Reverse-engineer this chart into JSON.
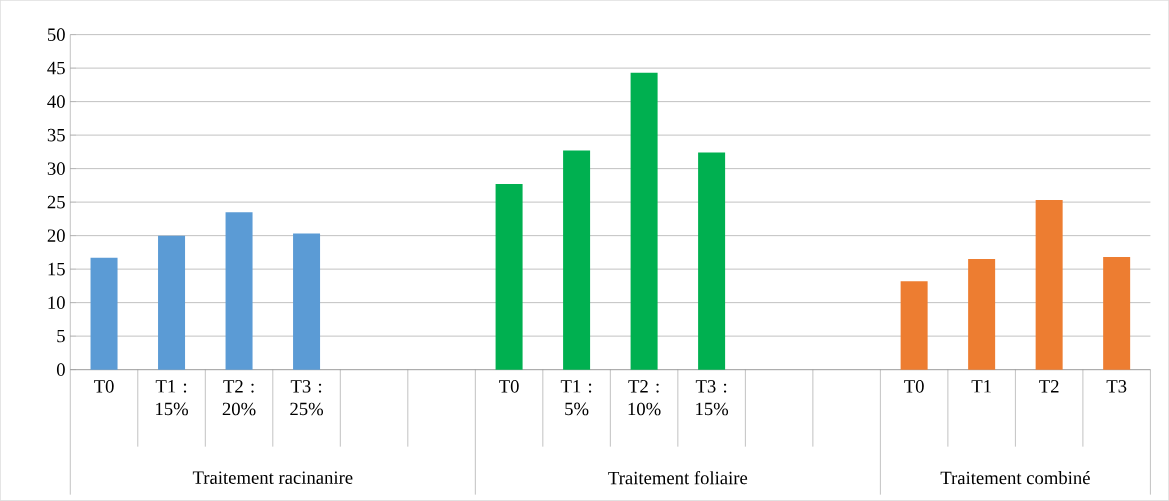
{
  "chart_data": {
    "type": "bar",
    "categories": [
      "T0",
      "T1 : 15%",
      "T2 : 20%",
      "T3 : 25%",
      null,
      null,
      "T0",
      "T1 : 5%",
      "T2 : 10%",
      "T3 : 15%",
      null,
      null,
      "T0",
      "T1",
      "T2",
      "T3"
    ],
    "values": [
      16.7,
      20.0,
      23.5,
      20.3,
      null,
      null,
      27.7,
      32.7,
      44.3,
      32.4,
      null,
      null,
      13.2,
      16.5,
      25.3,
      16.8
    ],
    "colors": [
      "#5b9bd5",
      "#5b9bd5",
      "#5b9bd5",
      "#5b9bd5",
      "#5b9bd5",
      "#5b9bd5",
      "#00b050",
      "#00b050",
      "#00b050",
      "#00b050",
      "#00b050",
      "#00b050",
      "#ed7d31",
      "#ed7d31",
      "#ed7d31",
      "#ed7d31"
    ],
    "ylim": [
      0,
      50
    ],
    "yticks": [
      0,
      5,
      10,
      15,
      20,
      25,
      30,
      35,
      40,
      45,
      50
    ],
    "grid": "y",
    "annotations": [
      "Traitement racinanire",
      "Traitement foliaire",
      "Traitement combiné"
    ]
  }
}
